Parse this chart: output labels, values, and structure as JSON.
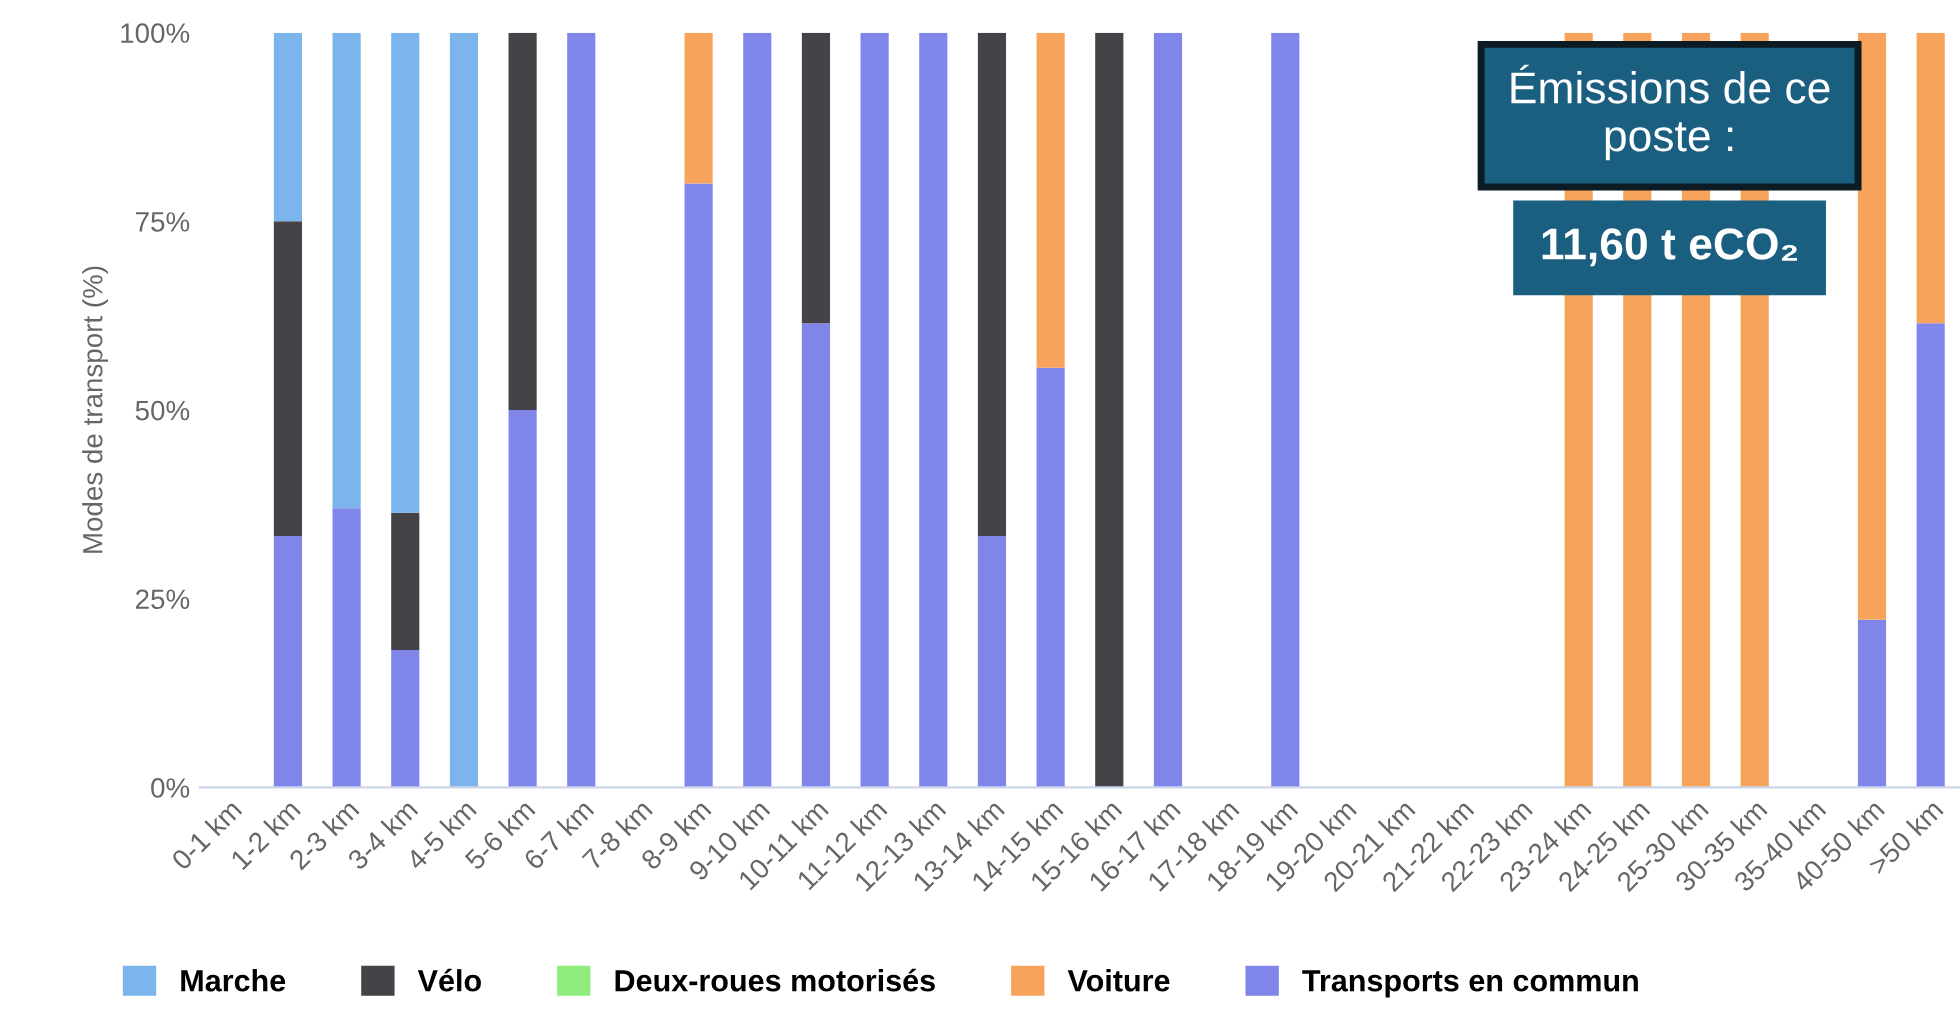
{
  "chart_data": {
    "type": "bar",
    "stacked": true,
    "ylabel": "Modes de transport (%)",
    "categories": [
      "0-1 km",
      "1-2 km",
      "2-3 km",
      "3-4 km",
      "4-5 km",
      "5-6 km",
      "6-7 km",
      "7-8 km",
      "8-9 km",
      "9-10 km",
      "10-11 km",
      "11-12 km",
      "12-13 km",
      "13-14 km",
      "14-15 km",
      "15-16 km",
      "16-17 km",
      "17-18 km",
      "18-19 km",
      "19-20 km",
      "20-21 km",
      "21-22 km",
      "22-23 km",
      "23-24 km",
      "24-25 km",
      "25-30 km",
      "30-35 km",
      "35-40 km",
      "40-50 km",
      ">50 km"
    ],
    "series": [
      {
        "name": "Transports en commun",
        "color": "#8085e9",
        "values": [
          null,
          33.3,
          37,
          18.2,
          null,
          50,
          100,
          null,
          80,
          100,
          61.5,
          100,
          100,
          33.3,
          55.6,
          null,
          100,
          null,
          100,
          null,
          null,
          null,
          null,
          null,
          null,
          null,
          null,
          null,
          22.2,
          61.5
        ]
      },
      {
        "name": "Voiture",
        "color": "#f7a35c",
        "values": [
          null,
          null,
          null,
          null,
          null,
          null,
          null,
          null,
          20,
          null,
          null,
          null,
          null,
          null,
          44.4,
          null,
          null,
          null,
          null,
          null,
          null,
          null,
          null,
          100,
          100,
          100,
          100,
          null,
          77.8,
          38.5
        ]
      },
      {
        "name": "Deux-roues motorisés",
        "color": "#90ed7d",
        "values": [
          null,
          null,
          null,
          null,
          null,
          null,
          null,
          null,
          null,
          null,
          null,
          null,
          null,
          null,
          null,
          null,
          null,
          null,
          null,
          null,
          null,
          null,
          null,
          null,
          null,
          null,
          null,
          null,
          null,
          null
        ]
      },
      {
        "name": "Vélo",
        "color": "#434348",
        "values": [
          null,
          41.7,
          null,
          18.2,
          null,
          50,
          null,
          null,
          null,
          null,
          38.5,
          null,
          null,
          66.7,
          null,
          100,
          null,
          null,
          null,
          null,
          null,
          null,
          null,
          null,
          null,
          null,
          null,
          null,
          null,
          null
        ]
      },
      {
        "name": "Marche",
        "color": "#7cb5ec",
        "values": [
          null,
          25,
          63,
          63.6,
          100,
          null,
          null,
          null,
          null,
          null,
          null,
          null,
          null,
          null,
          null,
          null,
          null,
          null,
          null,
          null,
          null,
          null,
          null,
          null,
          null,
          null,
          null,
          null,
          null,
          null
        ]
      }
    ],
    "ylim": [
      0,
      100
    ],
    "yticks": [
      {
        "value": 0,
        "label": "0%"
      },
      {
        "value": 25,
        "label": "25%"
      },
      {
        "value": 50,
        "label": "50%"
      },
      {
        "value": 75,
        "label": "75%"
      },
      {
        "value": 100,
        "label": "100%"
      }
    ],
    "grid": false,
    "legend": "bottom",
    "annotations": [
      "Émissions de ce\nposte :",
      "11,60 t eCO₂"
    ]
  }
}
